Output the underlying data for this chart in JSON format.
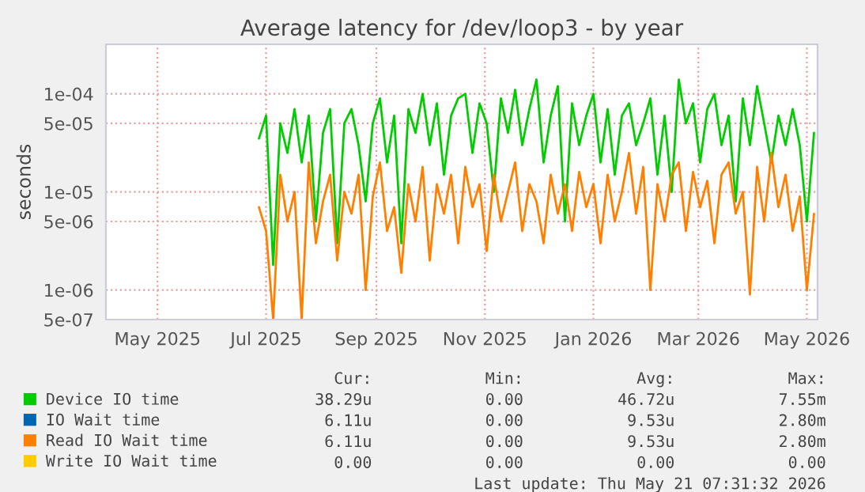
{
  "chart_data": {
    "type": "line",
    "title": "Average latency for /dev/loop3 - by year",
    "ylabel": "seconds",
    "log": "y",
    "grid": true,
    "legend": "bottom",
    "marker": "none",
    "line_style": "solid",
    "xlim": [
      "2025-04-16",
      "2026-05-21"
    ],
    "xticks": [
      {
        "value": "2025-05-15",
        "label": "May 2025"
      },
      {
        "value": "2025-07-15",
        "label": "Jul 2025"
      },
      {
        "value": "2025-09-15",
        "label": "Sep 2025"
      },
      {
        "value": "2025-11-15",
        "label": "Nov 2025"
      },
      {
        "value": "2026-01-15",
        "label": "Jan 2026"
      },
      {
        "value": "2026-03-15",
        "label": "Mar 2026"
      },
      {
        "value": "2026-05-15",
        "label": "May 2026"
      }
    ],
    "ylim": [
      5e-07,
      0.00032
    ],
    "yticks": [
      {
        "value": 5e-07,
        "label": "5e-07"
      },
      {
        "value": 1e-06,
        "label": "1e-06"
      },
      {
        "value": 5e-06,
        "label": "5e-06"
      },
      {
        "value": 1e-05,
        "label": "1e-05"
      },
      {
        "value": 5e-05,
        "label": "5e-05"
      },
      {
        "value": 0.0001,
        "label": "1e-04"
      }
    ],
    "x": [
      "2025-07-11",
      "2025-07-15",
      "2025-07-19",
      "2025-07-23",
      "2025-07-27",
      "2025-07-31",
      "2025-08-04",
      "2025-08-08",
      "2025-08-12",
      "2025-08-16",
      "2025-08-20",
      "2025-08-24",
      "2025-08-28",
      "2025-09-01",
      "2025-09-05",
      "2025-09-09",
      "2025-09-13",
      "2025-09-17",
      "2025-09-21",
      "2025-09-25",
      "2025-09-29",
      "2025-10-03",
      "2025-10-07",
      "2025-10-11",
      "2025-10-15",
      "2025-10-19",
      "2025-10-23",
      "2025-10-27",
      "2025-10-31",
      "2025-11-04",
      "2025-11-08",
      "2025-11-12",
      "2025-11-16",
      "2025-11-20",
      "2025-11-24",
      "2025-11-28",
      "2025-12-02",
      "2025-12-06",
      "2025-12-10",
      "2025-12-14",
      "2025-12-18",
      "2025-12-22",
      "2025-12-26",
      "2025-12-30",
      "2026-01-03",
      "2026-01-07",
      "2026-01-11",
      "2026-01-15",
      "2026-01-19",
      "2026-01-23",
      "2026-01-27",
      "2026-01-31",
      "2026-02-04",
      "2026-02-08",
      "2026-02-12",
      "2026-02-16",
      "2026-02-20",
      "2026-02-24",
      "2026-02-28",
      "2026-03-04",
      "2026-03-08",
      "2026-03-12",
      "2026-03-16",
      "2026-03-20",
      "2026-03-24",
      "2026-03-28",
      "2026-04-01",
      "2026-04-05",
      "2026-04-09",
      "2026-04-13",
      "2026-04-17",
      "2026-04-21",
      "2026-04-25",
      "2026-04-29",
      "2026-05-03",
      "2026-05-07",
      "2026-05-11",
      "2026-05-15",
      "2026-05-19"
    ],
    "series": [
      {
        "name": "Device IO time",
        "color": "#00cc00",
        "values": [
          3.5e-05,
          6e-05,
          1.8e-06,
          5e-05,
          2.5e-05,
          7e-05,
          2e-05,
          6e-05,
          5e-06,
          4e-05,
          7e-05,
          3e-06,
          5e-05,
          7e-05,
          3e-05,
          8e-06,
          5e-05,
          9e-05,
          2e-05,
          6e-05,
          3e-06,
          7e-05,
          4e-05,
          0.0001,
          3e-05,
          8e-05,
          1.5e-05,
          6e-05,
          9e-05,
          0.0001,
          2.5e-05,
          8e-05,
          5e-05,
          1e-05,
          9e-05,
          4e-05,
          0.00011,
          3e-05,
          7e-05,
          0.00014,
          2e-05,
          6e-05,
          0.00012,
          5e-06,
          8e-05,
          3e-05,
          6e-05,
          0.0001,
          2e-05,
          7e-05,
          1.5e-05,
          6e-05,
          8e-05,
          3e-05,
          5e-05,
          9e-05,
          1.5e-05,
          6e-05,
          1e-05,
          0.00014,
          5e-05,
          8e-05,
          2e-05,
          7e-05,
          0.0001,
          3e-05,
          6e-05,
          8e-06,
          9e-05,
          3e-05,
          0.00012,
          5e-05,
          2e-05,
          6e-05,
          3e-05,
          7e-05,
          3e-05,
          5e-06,
          4e-05
        ]
      },
      {
        "name": "IO Wait time",
        "color": "#0066b3",
        "values": [
          null,
          null,
          null,
          null,
          null,
          null,
          null,
          null,
          null,
          null,
          null,
          null,
          null,
          null,
          null,
          null,
          null,
          null,
          null,
          null,
          null,
          null,
          null,
          null,
          null,
          null,
          null,
          null,
          null,
          null,
          null,
          null,
          null,
          null,
          null,
          null,
          null,
          null,
          null,
          null,
          null,
          null,
          null,
          null,
          null,
          null,
          null,
          null,
          null,
          null,
          null,
          null,
          null,
          null,
          null,
          null,
          null,
          null,
          null,
          null,
          null,
          null,
          null,
          null,
          null,
          null,
          null,
          null,
          null,
          null,
          null,
          null,
          null,
          null,
          null,
          null,
          null,
          null,
          null
        ]
      },
      {
        "name": "Read IO Wait time",
        "color": "#ff8000",
        "values": [
          7e-06,
          4e-06,
          5e-07,
          1.5e-05,
          5e-06,
          1e-05,
          5e-07,
          2e-05,
          3e-06,
          8e-06,
          1.5e-05,
          2e-06,
          1e-05,
          6e-06,
          1.5e-05,
          1e-06,
          9e-06,
          2e-05,
          4e-06,
          7e-06,
          1.5e-06,
          1.2e-05,
          5e-06,
          1.8e-05,
          2e-06,
          1.2e-05,
          6e-06,
          1.5e-05,
          3e-06,
          1.8e-05,
          7e-06,
          1.2e-05,
          2.5e-06,
          1.5e-05,
          5e-06,
          1e-05,
          2e-05,
          4e-06,
          1.2e-05,
          8e-06,
          3e-06,
          1.5e-05,
          6e-06,
          1.2e-05,
          4e-06,
          1.6e-05,
          7e-06,
          1.2e-05,
          3e-06,
          1.5e-05,
          5e-06,
          1e-05,
          2.5e-05,
          6e-06,
          1.8e-05,
          1e-06,
          1.2e-05,
          5e-06,
          1.5e-05,
          2e-05,
          4e-06,
          1.6e-05,
          7e-06,
          1.3e-05,
          3e-06,
          1.5e-05,
          2e-05,
          6e-06,
          1e-05,
          9e-07,
          1.8e-05,
          5e-06,
          2.5e-05,
          7e-06,
          1.5e-05,
          4e-06,
          9e-06,
          1e-06,
          6e-06
        ]
      },
      {
        "name": "Write IO Wait time",
        "color": "#ffcc00",
        "values": [
          null,
          null,
          null,
          null,
          null,
          null,
          null,
          null,
          null,
          null,
          null,
          null,
          null,
          null,
          null,
          null,
          null,
          null,
          null,
          null,
          null,
          null,
          null,
          null,
          null,
          null,
          null,
          null,
          null,
          null,
          null,
          null,
          null,
          null,
          null,
          null,
          null,
          null,
          null,
          null,
          null,
          null,
          null,
          null,
          null,
          null,
          null,
          null,
          null,
          null,
          null,
          null,
          null,
          null,
          null,
          null,
          null,
          null,
          null,
          null,
          null,
          null,
          null,
          null,
          null,
          null,
          null,
          null,
          null,
          null,
          null,
          null,
          null,
          null,
          null,
          null,
          null,
          null,
          null
        ]
      }
    ],
    "annotations": [
      "Cur:",
      "Min:",
      "Avg:",
      "Max:",
      "38.29u",
      "0.00",
      "46.72u",
      "7.55m",
      "6.11u",
      "0.00",
      "9.53u",
      "2.80m",
      "6.11u",
      "0.00",
      "9.53u",
      "2.80m",
      "0.00",
      "0.00",
      "0.00",
      "0.00",
      "Last update: Thu May 21 07:31:32 2026"
    ]
  }
}
